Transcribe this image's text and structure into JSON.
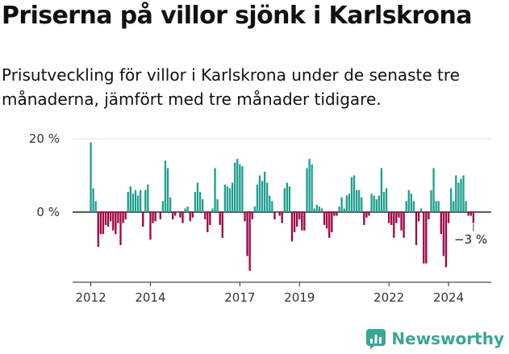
{
  "title": "Priserna på villor sjönk i Karlskrona",
  "subtitle": "Prisutveckling för villor i Karlskrona under de senaste tre månaderna, jämfört med tre månader tidigare.",
  "brand": {
    "name": "Newsworthy",
    "icon": "newsworthy-logo-icon",
    "color": "#3aa693"
  },
  "colors": {
    "positive": "#1f9e8f",
    "negative": "#a10042",
    "grid": "#dddddd",
    "axis": "#222222"
  },
  "chart_data": {
    "type": "bar",
    "x_start": "2012-01",
    "x_tick_labels": [
      "2012",
      "2014",
      "2017",
      "2019",
      "2022",
      "2024"
    ],
    "y_tick_labels": [
      "20 %",
      "0 %"
    ],
    "ylim": [
      -20,
      20
    ],
    "grid": true,
    "last_value_label": "−3 %",
    "values": [
      19,
      6.5,
      3,
      -9.5,
      -6,
      -6,
      -3.5,
      -4,
      -2.5,
      -5,
      -6,
      -3,
      -9,
      -3,
      -2,
      5.5,
      7,
      5,
      6,
      4.5,
      6,
      -4,
      6,
      7.5,
      -7.5,
      -3,
      -2.5,
      0,
      -2,
      3,
      14,
      12,
      4,
      -2,
      -1,
      0,
      -1.5,
      -3,
      1,
      1.5,
      -2.5,
      -1.5,
      5.5,
      8,
      5.5,
      3.5,
      -2,
      -5.5,
      -3.5,
      1,
      12,
      3.5,
      -3.5,
      -7,
      7.5,
      7,
      6.5,
      8,
      13.5,
      14.5,
      13,
      12.5,
      -2.5,
      -12,
      -16,
      -2,
      1.5,
      7.5,
      10,
      8.5,
      11,
      8,
      4.5,
      3,
      -2,
      0,
      -1,
      -3,
      6.5,
      8,
      7,
      -8,
      -5.5,
      -4,
      -2,
      -5,
      -5,
      12,
      14.5,
      13,
      1,
      2,
      1.5,
      1,
      -3.5,
      -4.5,
      -7,
      -5.5,
      -1,
      -1,
      1.5,
      4,
      1,
      4.5,
      5,
      9.5,
      10,
      6,
      6,
      4,
      -3.5,
      -1.5,
      -1,
      5,
      4.5,
      3.5,
      4.5,
      12,
      5.5,
      6.5,
      -3,
      -3.5,
      -7,
      -3,
      -1.5,
      -5,
      -7,
      3,
      6,
      5,
      3,
      -9,
      -2.5,
      1,
      -14,
      -14,
      -2,
      6,
      12,
      3,
      3,
      -6,
      -12,
      -15,
      -3,
      6.5,
      3,
      10,
      8,
      9,
      10,
      3,
      -1,
      -1,
      -3
    ]
  }
}
